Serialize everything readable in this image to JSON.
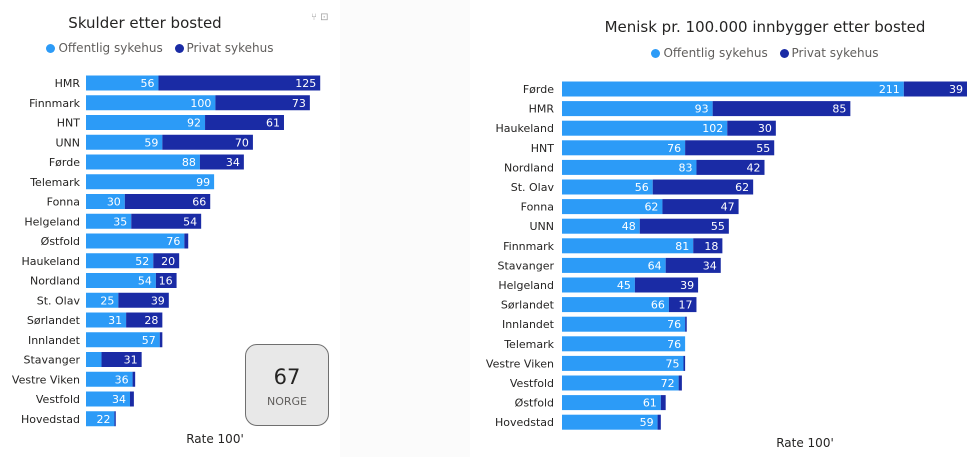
{
  "colors": {
    "public": "#2c9bf7",
    "private": "#1a2ba5"
  },
  "chart_data": [
    {
      "type": "bar",
      "orientation": "horizontal",
      "stacked": true,
      "title": "Skulder etter bosted",
      "xlabel": "Rate 100'",
      "legend_position": "top-center",
      "categories": [
        "HMR",
        "Finnmark",
        "HNT",
        "UNN",
        "Førde",
        "Telemark",
        "Fonna",
        "Helgeland",
        "Østfold",
        "Haukeland",
        "Nordland",
        "St. Olav",
        "Sørlandet",
        "Innlandet",
        "Stavanger",
        "Vestre Viken",
        "Vestfold",
        "Hovedstad"
      ],
      "series": [
        {
          "name": "Offentlig sykehus",
          "values": [
            56,
            100,
            92,
            59,
            88,
            99,
            30,
            35,
            76,
            52,
            54,
            25,
            31,
            57,
            12,
            36,
            34,
            22
          ]
        },
        {
          "name": "Privat sykehus",
          "values": [
            125,
            73,
            61,
            70,
            34,
            0,
            66,
            54,
            3,
            20,
            16,
            39,
            28,
            2,
            31,
            2,
            3,
            1
          ]
        }
      ],
      "labels": [
        [
          true,
          true,
          true,
          true,
          true,
          true,
          true,
          true,
          true,
          true,
          true,
          true,
          true,
          true,
          false,
          true,
          true,
          true
        ],
        [
          true,
          true,
          true,
          true,
          true,
          false,
          true,
          true,
          false,
          true,
          true,
          true,
          true,
          false,
          true,
          false,
          false,
          false
        ]
      ]
    },
    {
      "type": "bar",
      "orientation": "horizontal",
      "stacked": true,
      "title": "Menisk pr. 100.000 innbygger etter bosted",
      "xlabel": "Rate 100'",
      "legend_position": "top-center",
      "categories": [
        "Førde",
        "HMR",
        "Haukeland",
        "HNT",
        "Nordland",
        "St. Olav",
        "Fonna",
        "UNN",
        "Finnmark",
        "Stavanger",
        "Helgeland",
        "Sørlandet",
        "Innlandet",
        "Telemark",
        "Vestre Viken",
        "Vestfold",
        "Østfold",
        "Hovedstad"
      ],
      "series": [
        {
          "name": "Offentlig sykehus",
          "values": [
            211,
            93,
            102,
            76,
            83,
            56,
            62,
            48,
            81,
            64,
            45,
            66,
            76,
            76,
            75,
            72,
            61,
            59
          ]
        },
        {
          "name": "Privat sykehus",
          "values": [
            39,
            85,
            30,
            55,
            42,
            62,
            47,
            55,
            18,
            34,
            39,
            17,
            1,
            0,
            1,
            2,
            3,
            2
          ]
        }
      ],
      "labels": [
        [
          true,
          true,
          true,
          true,
          true,
          true,
          true,
          true,
          true,
          true,
          true,
          true,
          true,
          true,
          true,
          true,
          true,
          true
        ],
        [
          true,
          true,
          true,
          true,
          true,
          true,
          true,
          true,
          true,
          true,
          true,
          true,
          false,
          false,
          false,
          false,
          false,
          false
        ]
      ]
    }
  ],
  "card": {
    "value": "67",
    "label": "NORGE"
  },
  "vis_icons": "⑂ ⊡"
}
